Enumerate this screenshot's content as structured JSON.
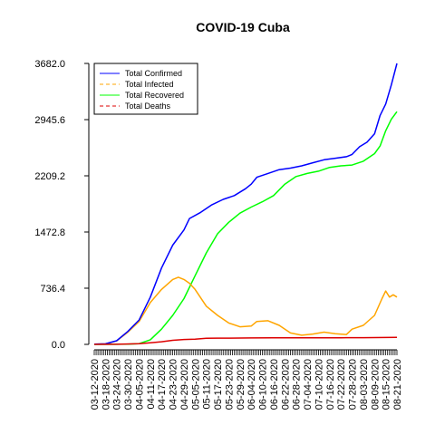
{
  "chart_data": {
    "type": "line",
    "title": "COVID-19 Cuba",
    "xlabel": "",
    "ylabel": "",
    "ylim": [
      0,
      3682
    ],
    "yticks": [
      "0.0",
      "736.4",
      "1472.8",
      "2209.2",
      "2945.6",
      "3682.0"
    ],
    "ytick_values": [
      0,
      736.4,
      1472.8,
      2209.2,
      2945.6,
      3682.0
    ],
    "x_start_date": "2020-03-12",
    "x_end_date": "2020-08-21",
    "xticks": [
      "03-12-2020",
      "03-18-2020",
      "03-24-2020",
      "03-30-2020",
      "04-05-2020",
      "04-11-2020",
      "04-17-2020",
      "04-23-2020",
      "04-29-2020",
      "05-05-2020",
      "05-11-2020",
      "05-17-2020",
      "05-23-2020",
      "05-29-2020",
      "06-04-2020",
      "06-10-2020",
      "06-16-2020",
      "06-22-2020",
      "06-28-2020",
      "07-04-2020",
      "07-10-2020",
      "07-16-2020",
      "07-22-2020",
      "07-28-2020",
      "08-03-2020",
      "08-09-2020",
      "08-15-2020",
      "08-21-2020"
    ],
    "grid": false,
    "legend_position": "top-left",
    "series": [
      {
        "name": "Total Confirmed",
        "color": "#0000ff",
        "dash": "solid",
        "points": [
          [
            "03-12-2020",
            3
          ],
          [
            "03-18-2020",
            7
          ],
          [
            "03-24-2020",
            48
          ],
          [
            "03-30-2020",
            170
          ],
          [
            "04-05-2020",
            320
          ],
          [
            "04-11-2020",
            620
          ],
          [
            "04-17-2020",
            1000
          ],
          [
            "04-23-2020",
            1300
          ],
          [
            "04-29-2020",
            1500
          ],
          [
            "05-02-2020",
            1650
          ],
          [
            "05-08-2020",
            1730
          ],
          [
            "05-14-2020",
            1830
          ],
          [
            "05-20-2020",
            1900
          ],
          [
            "05-26-2020",
            1950
          ],
          [
            "06-01-2020",
            2040
          ],
          [
            "06-04-2020",
            2100
          ],
          [
            "06-07-2020",
            2190
          ],
          [
            "06-13-2020",
            2240
          ],
          [
            "06-19-2020",
            2290
          ],
          [
            "06-25-2020",
            2310
          ],
          [
            "07-01-2020",
            2340
          ],
          [
            "07-07-2020",
            2380
          ],
          [
            "07-13-2020",
            2420
          ],
          [
            "07-19-2020",
            2440
          ],
          [
            "07-25-2020",
            2460
          ],
          [
            "07-28-2020",
            2490
          ],
          [
            "08-01-2020",
            2590
          ],
          [
            "08-05-2020",
            2650
          ],
          [
            "08-09-2020",
            2760
          ],
          [
            "08-12-2020",
            3000
          ],
          [
            "08-15-2020",
            3150
          ],
          [
            "08-18-2020",
            3400
          ],
          [
            "08-21-2020",
            3682
          ]
        ]
      },
      {
        "name": "Total Infected",
        "color": "#ffa500",
        "dash": "dashed",
        "points": [
          [
            "03-12-2020",
            3
          ],
          [
            "03-18-2020",
            7
          ],
          [
            "03-24-2020",
            45
          ],
          [
            "03-30-2020",
            160
          ],
          [
            "04-05-2020",
            300
          ],
          [
            "04-11-2020",
            550
          ],
          [
            "04-17-2020",
            720
          ],
          [
            "04-23-2020",
            850
          ],
          [
            "04-26-2020",
            880
          ],
          [
            "04-29-2020",
            850
          ],
          [
            "05-02-2020",
            800
          ],
          [
            "05-05-2020",
            720
          ],
          [
            "05-11-2020",
            500
          ],
          [
            "05-17-2020",
            380
          ],
          [
            "05-23-2020",
            280
          ],
          [
            "05-29-2020",
            230
          ],
          [
            "06-04-2020",
            240
          ],
          [
            "06-07-2020",
            300
          ],
          [
            "06-13-2020",
            310
          ],
          [
            "06-19-2020",
            250
          ],
          [
            "06-25-2020",
            150
          ],
          [
            "07-01-2020",
            120
          ],
          [
            "07-07-2020",
            135
          ],
          [
            "07-13-2020",
            160
          ],
          [
            "07-19-2020",
            140
          ],
          [
            "07-25-2020",
            130
          ],
          [
            "07-28-2020",
            200
          ],
          [
            "08-03-2020",
            250
          ],
          [
            "08-09-2020",
            380
          ],
          [
            "08-13-2020",
            600
          ],
          [
            "08-15-2020",
            700
          ],
          [
            "08-17-2020",
            620
          ],
          [
            "08-19-2020",
            650
          ],
          [
            "08-21-2020",
            620
          ]
        ]
      },
      {
        "name": "Total Recovered",
        "color": "#00ff00",
        "dash": "solid",
        "points": [
          [
            "03-12-2020",
            0
          ],
          [
            "03-30-2020",
            2
          ],
          [
            "04-05-2020",
            10
          ],
          [
            "04-11-2020",
            60
          ],
          [
            "04-17-2020",
            200
          ],
          [
            "04-23-2020",
            380
          ],
          [
            "04-29-2020",
            600
          ],
          [
            "05-05-2020",
            900
          ],
          [
            "05-11-2020",
            1200
          ],
          [
            "05-17-2020",
            1450
          ],
          [
            "05-23-2020",
            1600
          ],
          [
            "05-29-2020",
            1720
          ],
          [
            "06-04-2020",
            1800
          ],
          [
            "06-10-2020",
            1870
          ],
          [
            "06-16-2020",
            1950
          ],
          [
            "06-22-2020",
            2100
          ],
          [
            "06-28-2020",
            2200
          ],
          [
            "07-04-2020",
            2240
          ],
          [
            "07-10-2020",
            2270
          ],
          [
            "07-16-2020",
            2320
          ],
          [
            "07-22-2020",
            2340
          ],
          [
            "07-28-2020",
            2350
          ],
          [
            "08-03-2020",
            2400
          ],
          [
            "08-09-2020",
            2500
          ],
          [
            "08-12-2020",
            2600
          ],
          [
            "08-15-2020",
            2800
          ],
          [
            "08-18-2020",
            2950
          ],
          [
            "08-21-2020",
            3050
          ]
        ]
      },
      {
        "name": "Total Deaths",
        "color": "#dd0000",
        "dash": "dashed",
        "points": [
          [
            "03-12-2020",
            0
          ],
          [
            "03-24-2020",
            1
          ],
          [
            "04-05-2020",
            9
          ],
          [
            "04-11-2020",
            21
          ],
          [
            "04-17-2020",
            34
          ],
          [
            "04-23-2020",
            54
          ],
          [
            "04-29-2020",
            64
          ],
          [
            "05-05-2020",
            69
          ],
          [
            "05-11-2020",
            79
          ],
          [
            "05-17-2020",
            82
          ],
          [
            "05-23-2020",
            82
          ],
          [
            "06-04-2020",
            84
          ],
          [
            "06-16-2020",
            85
          ],
          [
            "06-28-2020",
            86
          ],
          [
            "07-10-2020",
            87
          ],
          [
            "07-22-2020",
            87
          ],
          [
            "08-03-2020",
            88
          ],
          [
            "08-09-2020",
            89
          ],
          [
            "08-15-2020",
            90
          ],
          [
            "08-21-2020",
            92
          ]
        ]
      }
    ]
  }
}
